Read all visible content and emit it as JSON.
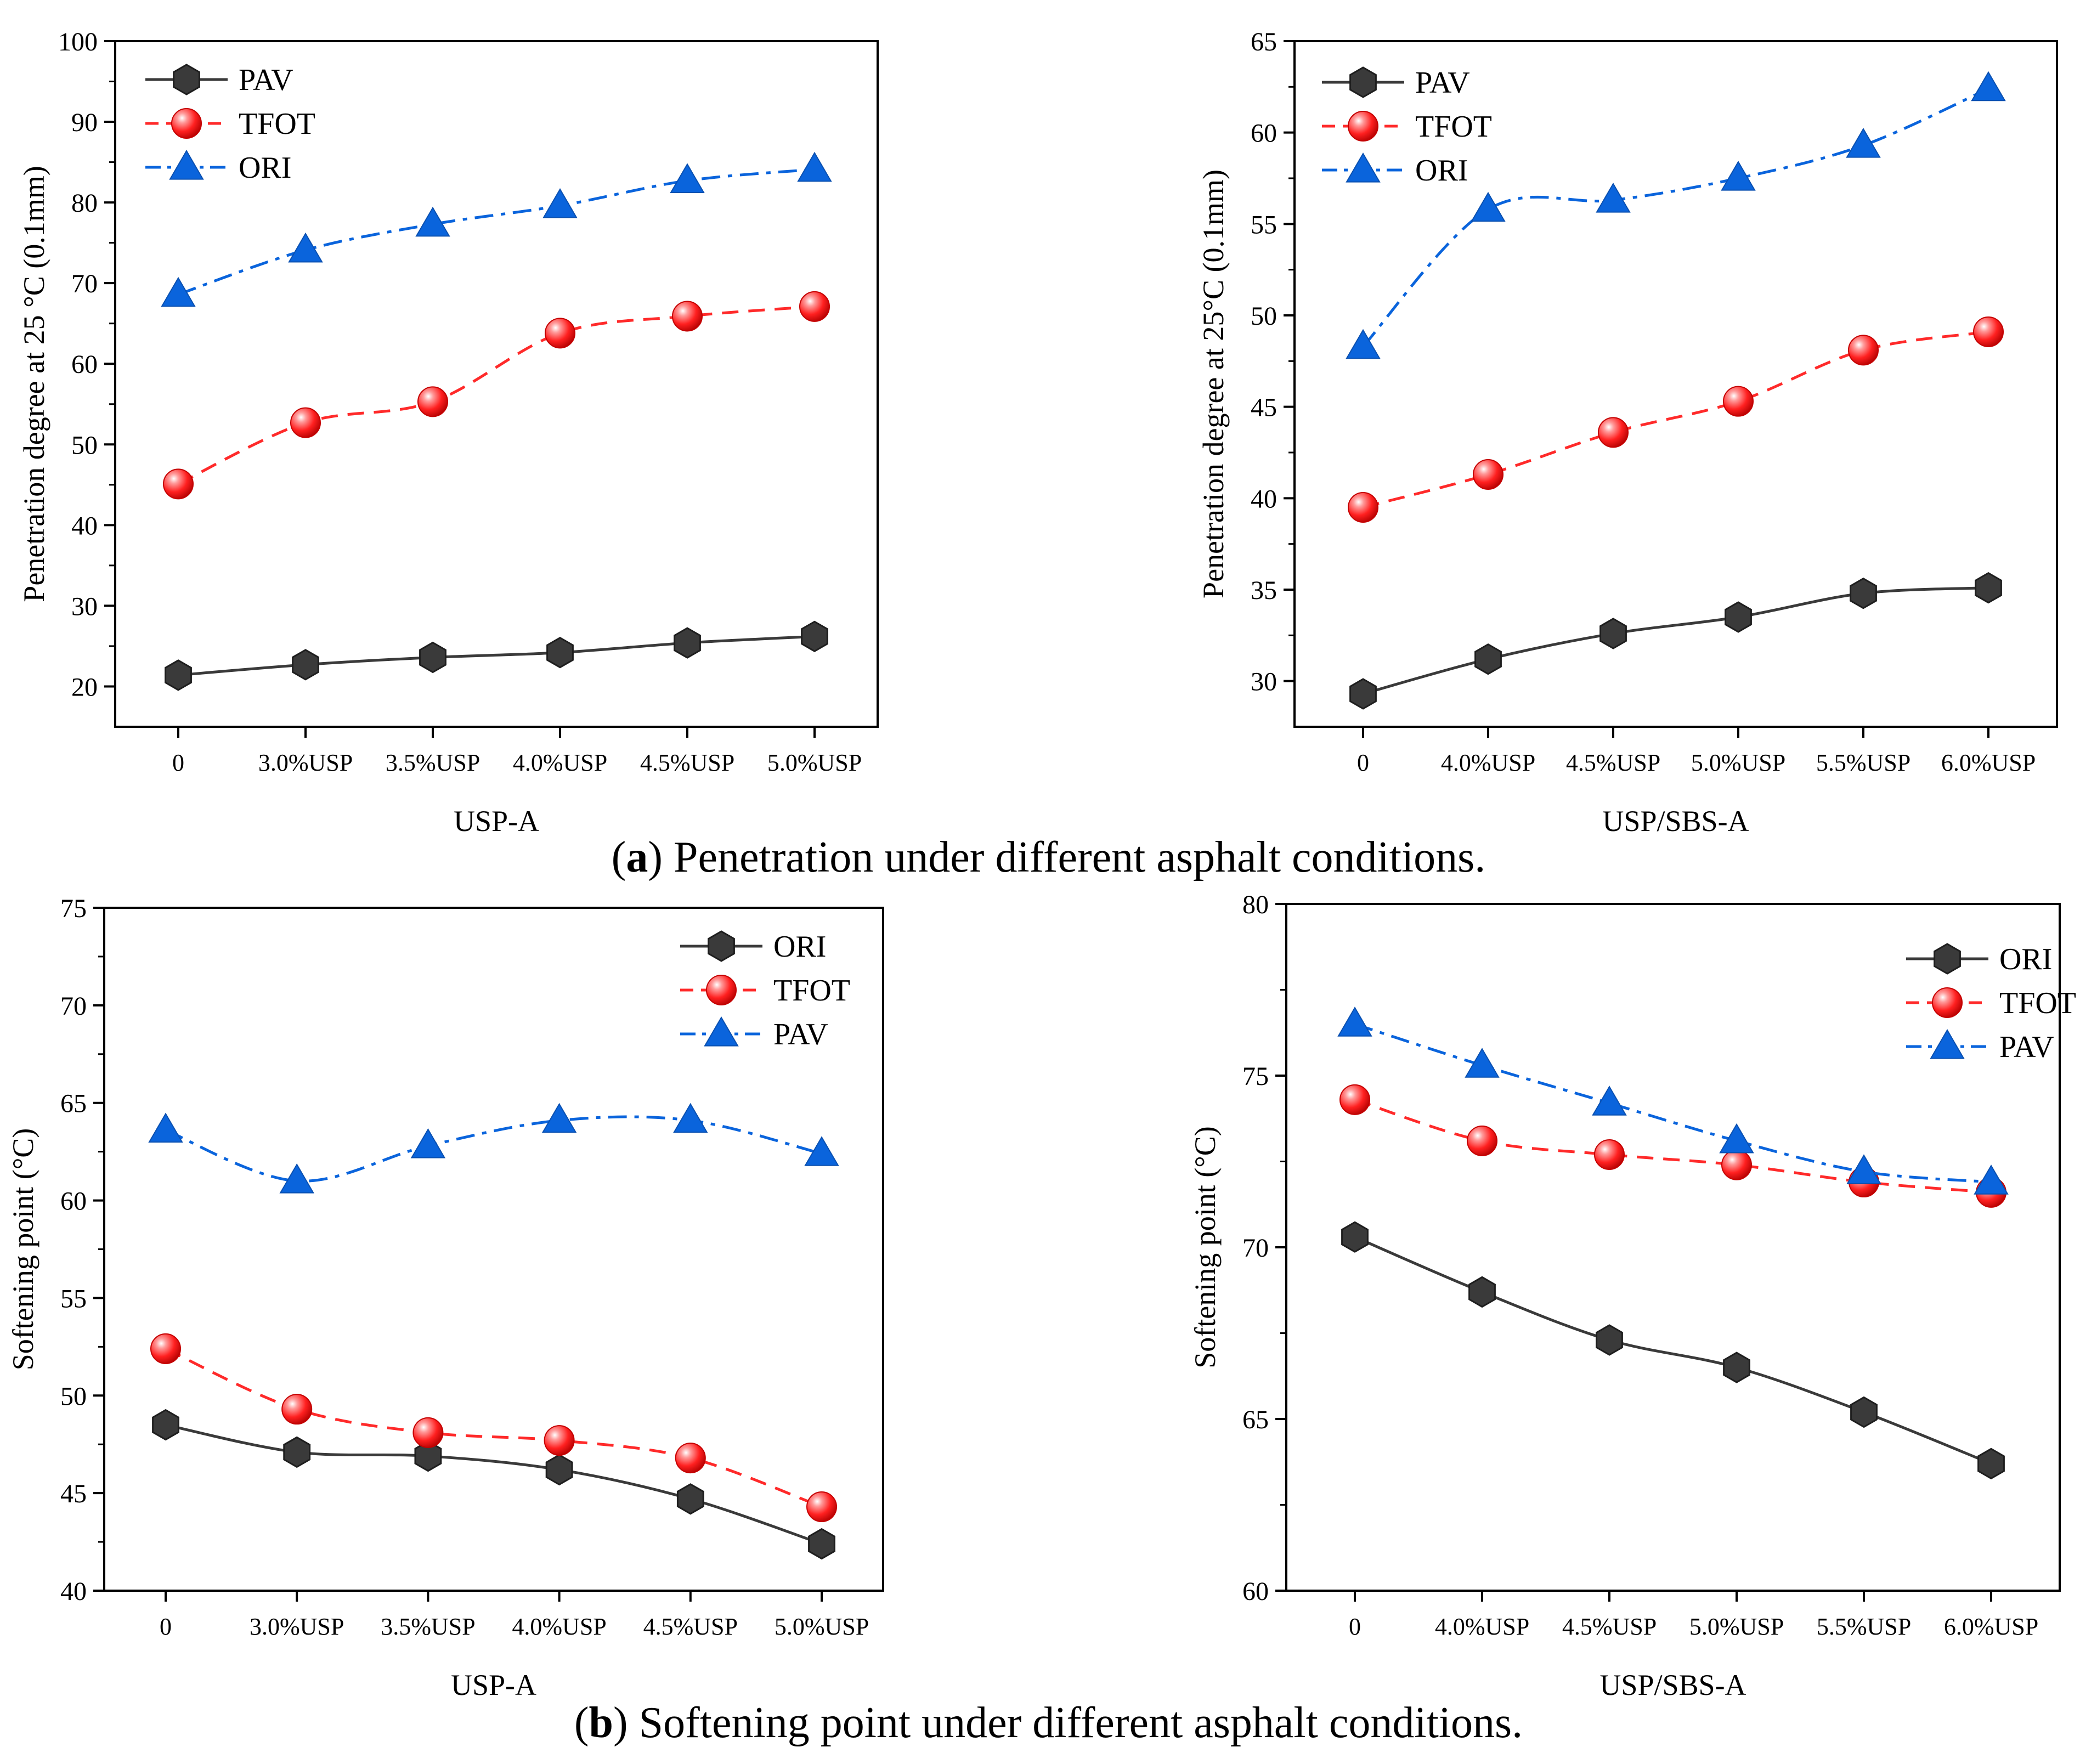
{
  "captions": {
    "a_letter": "a",
    "a_text": " Penetration under different asphalt conditions.",
    "b_letter": "b",
    "b_text": " Softening point under different asphalt conditions."
  },
  "colors": {
    "black": "#3a3a3a",
    "red": "#ff2a2a",
    "blue": "#0a64dc"
  },
  "chart_data": [
    {
      "type": "line",
      "xlabel": "USP-A",
      "ylabel": "Penetration degree at 25 °C (0.1mm)",
      "categories": [
        "0",
        "3.0%USP",
        "3.5%USP",
        "4.0%USP",
        "4.5%USP",
        "5.0%USP"
      ],
      "ylim": [
        15,
        100
      ],
      "yticks": [
        20,
        30,
        40,
        50,
        60,
        70,
        80,
        90,
        100
      ],
      "legend_position": "top-left",
      "series": [
        {
          "name": "PAV",
          "marker": "hexagon",
          "dash": "solid",
          "color": "black",
          "values": [
            21.4,
            22.7,
            23.6,
            24.2,
            25.4,
            26.2
          ]
        },
        {
          "name": "TFOT",
          "marker": "circle",
          "dash": "dashed",
          "color": "red",
          "values": [
            45.1,
            52.7,
            55.3,
            63.8,
            65.9,
            67.1
          ]
        },
        {
          "name": "ORI",
          "marker": "triangle",
          "dash": "dashdot",
          "color": "blue",
          "values": [
            68.6,
            74.1,
            77.3,
            79.6,
            82.7,
            84.1
          ]
        }
      ]
    },
    {
      "type": "line",
      "xlabel": "USP/SBS-A",
      "ylabel": "Penetration degree at 25°C (0.1mm)",
      "categories": [
        "0",
        "4.0%USP",
        "4.5%USP",
        "5.0%USP",
        "5.5%USP",
        "6.0%USP"
      ],
      "ylim": [
        27.5,
        65
      ],
      "yticks": [
        30,
        35,
        40,
        45,
        50,
        55,
        60,
        65
      ],
      "legend_position": "top-left",
      "series": [
        {
          "name": "PAV",
          "marker": "hexagon",
          "dash": "solid",
          "color": "black",
          "values": [
            29.3,
            31.2,
            32.6,
            33.5,
            34.8,
            35.1
          ]
        },
        {
          "name": "TFOT",
          "marker": "circle",
          "dash": "dashed",
          "color": "red",
          "values": [
            39.5,
            41.3,
            43.6,
            45.3,
            48.1,
            49.1
          ]
        },
        {
          "name": "ORI",
          "marker": "triangle",
          "dash": "dashdot",
          "color": "blue",
          "values": [
            48.3,
            55.8,
            56.3,
            57.5,
            59.3,
            62.4
          ]
        }
      ]
    },
    {
      "type": "line",
      "xlabel": "USP-A",
      "ylabel": "Softening point (°C)",
      "categories": [
        "0",
        "3.0%USP",
        "3.5%USP",
        "4.0%USP",
        "4.5%USP",
        "5.0%USP"
      ],
      "ylim": [
        40,
        75
      ],
      "yticks": [
        40,
        45,
        50,
        55,
        60,
        65,
        70,
        75
      ],
      "legend_position": "top-right",
      "series": [
        {
          "name": "ORI",
          "marker": "hexagon",
          "dash": "solid",
          "color": "black",
          "values": [
            48.5,
            47.1,
            46.9,
            46.2,
            44.7,
            42.4
          ]
        },
        {
          "name": "TFOT",
          "marker": "circle",
          "dash": "dashed",
          "color": "red",
          "values": [
            52.4,
            49.3,
            48.1,
            47.7,
            46.8,
            44.3
          ]
        },
        {
          "name": "PAV",
          "marker": "triangle",
          "dash": "dashdot",
          "color": "blue",
          "values": [
            63.6,
            61.0,
            62.8,
            64.1,
            64.1,
            62.4
          ]
        }
      ]
    },
    {
      "type": "line",
      "xlabel": "USP/SBS-A",
      "ylabel": "Softening point (°C)",
      "categories": [
        "0",
        "4.0%USP",
        "4.5%USP",
        "5.0%USP",
        "5.5%USP",
        "6.0%USP"
      ],
      "ylim": [
        60,
        80
      ],
      "yticks": [
        60,
        65,
        70,
        75,
        80
      ],
      "legend_position": "top-right",
      "series": [
        {
          "name": "ORI",
          "marker": "hexagon",
          "dash": "solid",
          "color": "black",
          "values": [
            70.3,
            68.7,
            67.3,
            66.5,
            65.2,
            63.7
          ]
        },
        {
          "name": "TFOT",
          "marker": "circle",
          "dash": "dashed",
          "color": "red",
          "values": [
            74.3,
            73.1,
            72.7,
            72.4,
            71.9,
            71.6
          ]
        },
        {
          "name": "PAV",
          "marker": "triangle",
          "dash": "dashdot",
          "color": "blue",
          "values": [
            76.5,
            75.3,
            74.2,
            73.1,
            72.2,
            71.9
          ]
        }
      ]
    }
  ]
}
